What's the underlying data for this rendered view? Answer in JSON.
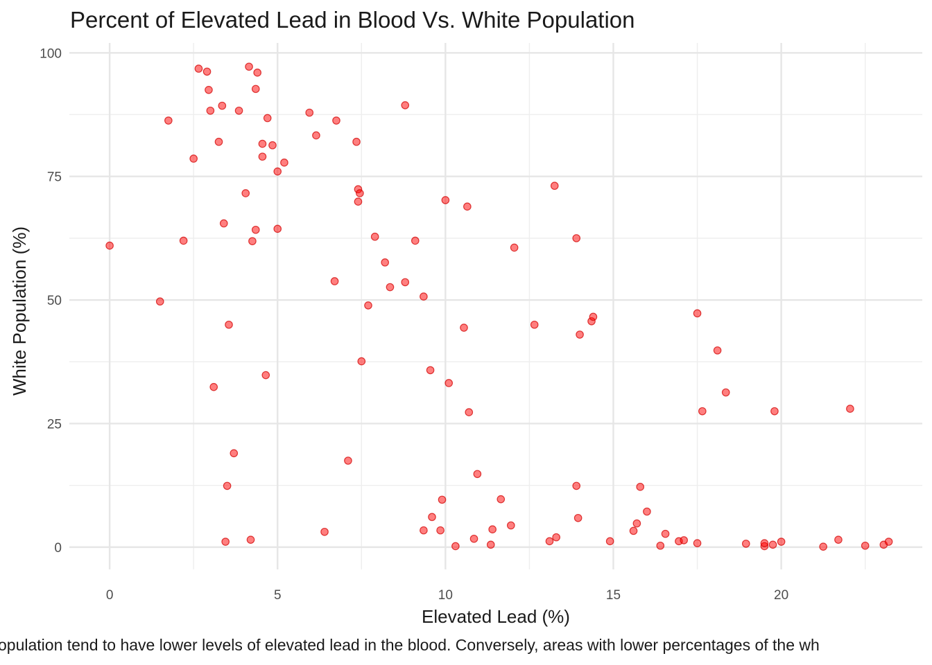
{
  "chart_data": {
    "type": "scatter",
    "title": "Percent of Elevated Lead in Blood Vs. White Population",
    "xlabel": "Elevated Lead (%)",
    "ylabel": "White Population (%)",
    "caption": "opulation tend to have lower levels of elevated lead in the blood. Conversely, areas with lower percentages of the wh",
    "xlim": [
      -1.2,
      24.2
    ],
    "ylim": [
      -4.5,
      102
    ],
    "x_ticks": [
      0,
      5,
      10,
      15,
      20
    ],
    "y_ticks": [
      0,
      25,
      50,
      75,
      100
    ],
    "grid": true,
    "point_color": "#ff0000",
    "points": [
      [
        0.0,
        61.0
      ],
      [
        1.5,
        49.7
      ],
      [
        1.75,
        86.3
      ],
      [
        2.2,
        62.0
      ],
      [
        2.5,
        78.6
      ],
      [
        2.65,
        96.8
      ],
      [
        2.9,
        96.2
      ],
      [
        2.95,
        92.5
      ],
      [
        3.0,
        88.3
      ],
      [
        3.1,
        32.4
      ],
      [
        3.25,
        82.0
      ],
      [
        3.35,
        89.3
      ],
      [
        3.4,
        65.5
      ],
      [
        3.45,
        1.1
      ],
      [
        3.5,
        12.4
      ],
      [
        3.55,
        45.0
      ],
      [
        3.7,
        19.0
      ],
      [
        3.85,
        88.3
      ],
      [
        4.05,
        71.6
      ],
      [
        4.15,
        97.2
      ],
      [
        4.2,
        1.5
      ],
      [
        4.25,
        61.9
      ],
      [
        4.35,
        64.2
      ],
      [
        4.35,
        92.7
      ],
      [
        4.4,
        96.0
      ],
      [
        4.55,
        79.0
      ],
      [
        4.55,
        81.6
      ],
      [
        4.65,
        34.8
      ],
      [
        4.7,
        86.8
      ],
      [
        4.85,
        81.3
      ],
      [
        5.0,
        76.0
      ],
      [
        5.0,
        64.4
      ],
      [
        5.2,
        77.8
      ],
      [
        5.95,
        87.9
      ],
      [
        6.15,
        83.3
      ],
      [
        6.4,
        3.1
      ],
      [
        6.7,
        53.8
      ],
      [
        6.75,
        86.3
      ],
      [
        7.1,
        17.5
      ],
      [
        7.35,
        82.0
      ],
      [
        7.4,
        72.4
      ],
      [
        7.45,
        71.6
      ],
      [
        7.4,
        69.9
      ],
      [
        7.5,
        37.6
      ],
      [
        7.7,
        48.9
      ],
      [
        7.9,
        62.8
      ],
      [
        8.2,
        57.6
      ],
      [
        8.35,
        52.6
      ],
      [
        8.8,
        53.6
      ],
      [
        8.8,
        89.4
      ],
      [
        9.1,
        62.0
      ],
      [
        9.35,
        50.7
      ],
      [
        9.35,
        3.4
      ],
      [
        9.55,
        35.8
      ],
      [
        9.6,
        6.1
      ],
      [
        9.85,
        3.4
      ],
      [
        9.9,
        9.6
      ],
      [
        10.0,
        70.2
      ],
      [
        10.1,
        33.2
      ],
      [
        10.3,
        0.2
      ],
      [
        10.55,
        44.4
      ],
      [
        10.65,
        68.9
      ],
      [
        10.7,
        27.3
      ],
      [
        10.85,
        1.7
      ],
      [
        10.95,
        14.8
      ],
      [
        11.35,
        0.5
      ],
      [
        11.4,
        3.6
      ],
      [
        11.65,
        9.7
      ],
      [
        11.95,
        4.4
      ],
      [
        12.05,
        60.6
      ],
      [
        12.65,
        45.0
      ],
      [
        13.1,
        1.2
      ],
      [
        13.25,
        73.1
      ],
      [
        13.3,
        2.0
      ],
      [
        13.9,
        62.5
      ],
      [
        13.9,
        12.4
      ],
      [
        13.95,
        5.9
      ],
      [
        14.0,
        43.0
      ],
      [
        14.35,
        45.7
      ],
      [
        14.4,
        46.6
      ],
      [
        14.9,
        1.2
      ],
      [
        15.6,
        3.3
      ],
      [
        15.7,
        4.8
      ],
      [
        15.8,
        12.2
      ],
      [
        16.0,
        7.2
      ],
      [
        16.4,
        0.3
      ],
      [
        16.55,
        2.7
      ],
      [
        16.95,
        1.2
      ],
      [
        17.1,
        1.4
      ],
      [
        17.5,
        47.3
      ],
      [
        17.5,
        0.8
      ],
      [
        17.65,
        27.5
      ],
      [
        18.1,
        39.8
      ],
      [
        18.35,
        31.3
      ],
      [
        18.95,
        0.7
      ],
      [
        19.5,
        0.2
      ],
      [
        19.5,
        0.8
      ],
      [
        19.75,
        0.5
      ],
      [
        19.8,
        27.5
      ],
      [
        20.0,
        1.1
      ],
      [
        21.25,
        0.1
      ],
      [
        21.7,
        1.5
      ],
      [
        22.05,
        28.0
      ],
      [
        22.5,
        0.3
      ],
      [
        23.05,
        0.5
      ],
      [
        23.2,
        1.1
      ]
    ]
  }
}
